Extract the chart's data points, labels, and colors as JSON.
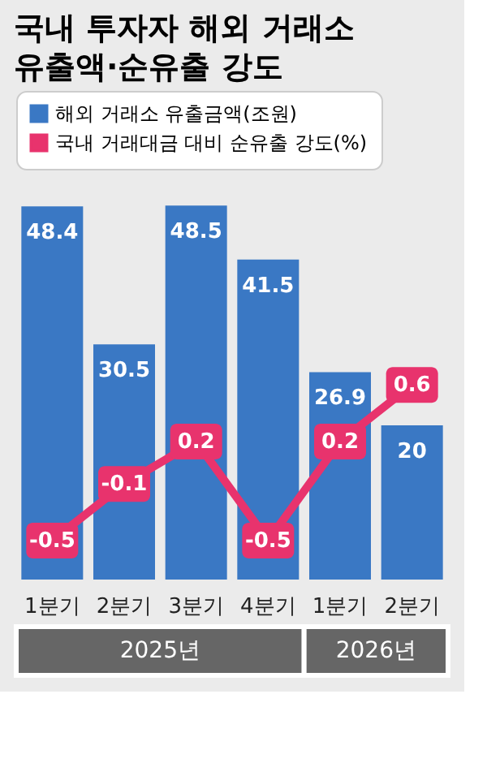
{
  "chart_data": {
    "type": "bar",
    "title": "국내 투자자 해외 거래소 유출액·순유출 강도",
    "categories": [
      "1분기",
      "2분기",
      "3분기",
      "4분기",
      "1분기",
      "2분기"
    ],
    "series": [
      {
        "name": "해외 거래소 유출금액(조원)",
        "color": "#3a78c4",
        "values": [
          48.4,
          30.5,
          48.5,
          41.5,
          26.9,
          20
        ]
      },
      {
        "name": "국내 거래대금 대비 순유출 강도(%)",
        "type": "line",
        "axis": "y2",
        "color": "#e8336d",
        "values": [
          -0.5,
          -0.1,
          0.2,
          -0.5,
          0.2,
          0.6
        ]
      }
    ],
    "annotations": [
      "2025년",
      "2026년"
    ],
    "data_labels": true,
    "legend": "top",
    "tick_labels": "x",
    "grid": false,
    "marker": "square",
    "line_style": "solid"
  }
}
